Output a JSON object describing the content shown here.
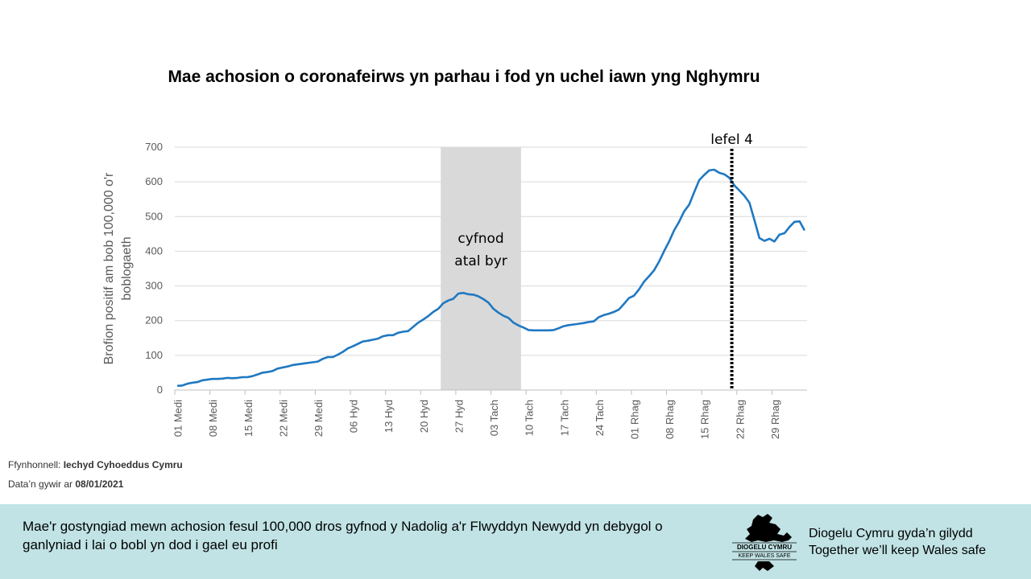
{
  "chart_data": {
    "type": "line",
    "title": "Mae achosion o coronafeirws yn parhau i fod yn uchel iawn yng Nghymru",
    "ylabel": "Brofion positif  am bob 100,000 o'r boblogaeth",
    "xlabel": "",
    "ylim": [
      0,
      700
    ],
    "yticks": [
      0,
      100,
      200,
      300,
      400,
      500,
      600,
      700
    ],
    "grid": true,
    "x_start_label": "01 Medi",
    "x_tick_labels": [
      "01 Medi",
      "08 Medi",
      "15 Medi",
      "22 Medi",
      "29 Medi",
      "06 Hyd",
      "13 Hyd",
      "20 Hyd",
      "27 Hyd",
      "03 Tach",
      "10 Tach",
      "17 Tach",
      "24 Tach",
      "01 Rhag",
      "08 Rhag",
      "15 Rhag",
      "22 Rhag",
      "29 Rhag"
    ],
    "values": [
      12,
      13,
      18,
      21,
      23,
      28,
      30,
      32,
      32,
      33,
      35,
      34,
      35,
      37,
      37,
      40,
      45,
      50,
      52,
      55,
      62,
      65,
      68,
      72,
      74,
      76,
      78,
      80,
      82,
      90,
      95,
      95,
      102,
      110,
      120,
      126,
      133,
      140,
      142,
      145,
      148,
      155,
      158,
      158,
      165,
      168,
      170,
      182,
      194,
      203,
      213,
      225,
      234,
      250,
      258,
      263,
      278,
      280,
      276,
      275,
      270,
      262,
      252,
      234,
      223,
      214,
      208,
      194,
      186,
      180,
      173,
      172,
      172,
      172,
      172,
      173,
      178,
      184,
      187,
      189,
      191,
      193,
      196,
      198,
      210,
      216,
      220,
      225,
      232,
      248,
      265,
      272,
      290,
      312,
      328,
      345,
      370,
      400,
      428,
      460,
      485,
      515,
      534,
      570,
      605,
      620,
      633,
      635,
      626,
      622,
      612,
      590,
      575,
      560,
      540,
      490,
      438,
      430,
      436,
      428,
      448,
      452,
      470,
      485,
      486,
      460
    ],
    "shaded_region": {
      "label_lines": [
        "cyfnod",
        "atal byr"
      ],
      "start_day": 53,
      "end_day": 69
    },
    "marker_line": {
      "label": "lefel 4",
      "day": 111
    },
    "series_color": "#1f78c1"
  },
  "footer": {
    "source_label": "Ffynhonnell:",
    "source_value": "Iechyd Cyhoeddus Cymru",
    "date_label": "Data’n gywir ar",
    "date_value": "08/01/2021",
    "message": "Mae'r gostyngiad mewn achosion fesul 100,000 dros gyfnod y Nadolig a'r Flwyddyn Newydd yn debygol o ganlyniad i lai o bobl yn dod i gael eu profi",
    "logo_line1": "DIOGELU CYMRU",
    "logo_line2": "KEEP WALES SAFE",
    "tagline_cy": "Diogelu Cymru gyda’n gilydd",
    "tagline_en": "Together we’ll keep Wales safe"
  },
  "colors": {
    "footer_bg": "#c1e3e5",
    "shade": "#d9d9d9",
    "grid": "#d9d9d9",
    "line": "#1f78c1"
  }
}
